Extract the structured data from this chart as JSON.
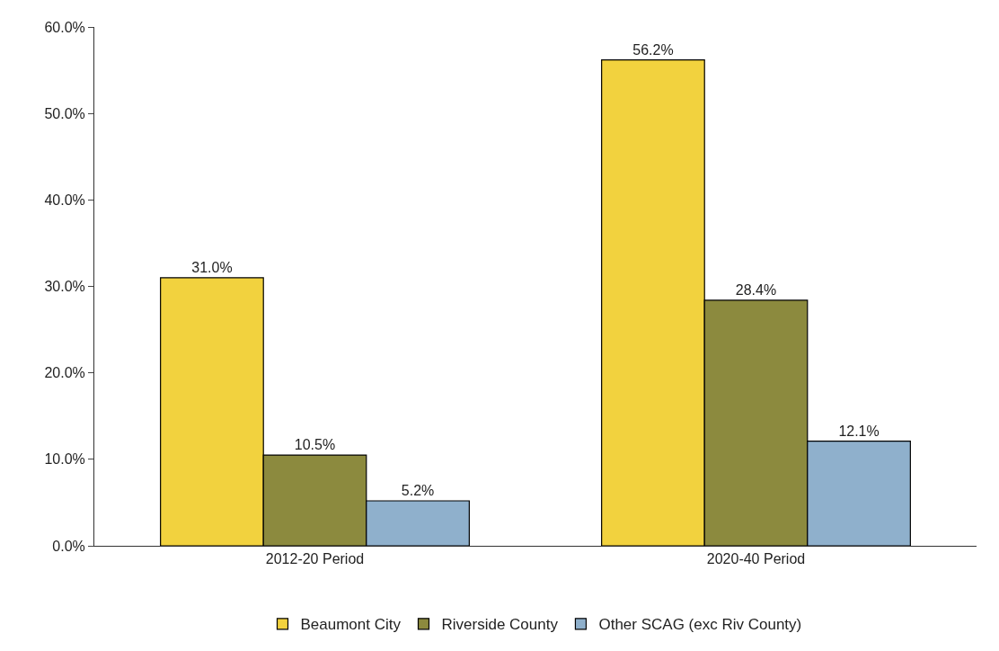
{
  "chart_data": {
    "type": "bar",
    "categories": [
      "2012-20 Period",
      "2020-40 Period"
    ],
    "series": [
      {
        "name": "Beaumont City",
        "color": "#f2d23e",
        "values": [
          31.0,
          56.2
        ],
        "value_labels": [
          "31.0%",
          "56.2%"
        ]
      },
      {
        "name": "Riverside County",
        "color": "#8c8a3e",
        "values": [
          10.5,
          28.4
        ],
        "value_labels": [
          "10.5%",
          "28.4%"
        ]
      },
      {
        "name": "Other SCAG (exc Riv County)",
        "color": "#8fb0cc",
        "values": [
          5.2,
          12.1
        ],
        "value_labels": [
          "5.2%",
          "12.1%"
        ]
      }
    ],
    "ylim": [
      0,
      60
    ],
    "yticks": [
      {
        "value": 0,
        "label": "0.0%"
      },
      {
        "value": 10,
        "label": "10.0%"
      },
      {
        "value": 20,
        "label": "20.0%"
      },
      {
        "value": 30,
        "label": "30.0%"
      },
      {
        "value": 40,
        "label": "40.0%"
      },
      {
        "value": 50,
        "label": "50.0%"
      },
      {
        "value": 60,
        "label": "60.0%"
      }
    ],
    "grid": false,
    "legend": "bottom"
  }
}
